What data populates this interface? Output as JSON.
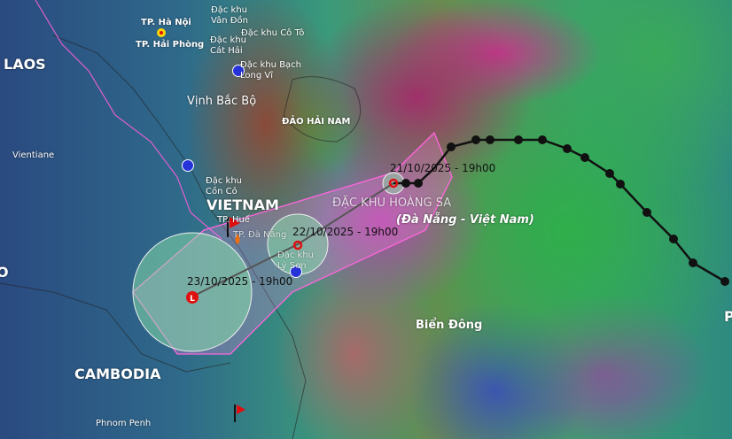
{
  "countries": {
    "laos": "LAOS",
    "vietnam": "VIETNAM",
    "cambodia": "CAMBODIA",
    "edge_right": "P",
    "edge_left": "O"
  },
  "cities": {
    "vientiane": "Vientiane",
    "phnom_penh": "Phnom Penh",
    "ha_noi": "TP. Hà Nội",
    "hai_phong": "TP. Hải Phòng",
    "hue": "TP. Huế",
    "da_nang": "TP. Đà Nẵng"
  },
  "places": {
    "van_don": "Đặc khu\nVân Đồn",
    "co_to": "Đặc khu Cô Tô",
    "cat_hai": "Đặc khu\nCát Hải",
    "bach_long_vi": "Đặc khu Bạch\nLong Vĩ",
    "con_co": "Đặc khu\nCồn Cỏ",
    "ly_son": "Đặc khu\nLý Sơn",
    "vinh_bac_bo": "Vịnh Bắc Bộ",
    "hai_nam": "ĐẢO HẢI NAM",
    "hoang_sa": "ĐẶC KHU HOÀNG SA",
    "hoang_sa_sub": "(Đà Nẵng - Việt Nam)",
    "bien_dong": "Biển Đông"
  },
  "forecast": [
    {
      "time": "21/10/2025 - 19h00",
      "icon": "typhoon-icon"
    },
    {
      "time": "22/10/2025 - 19h00",
      "icon": "typhoon-icon"
    },
    {
      "time": "23/10/2025 - 19h00",
      "icon": "low-pressure-icon"
    }
  ],
  "colors": {
    "cone": "#ff66dd",
    "track": "#111111",
    "storm": "#e01010"
  }
}
